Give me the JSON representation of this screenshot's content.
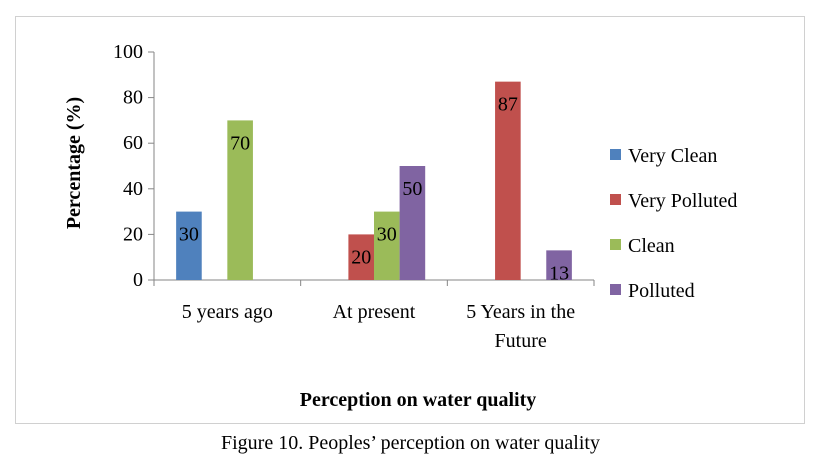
{
  "caption": "Figure 10. Peoples’ perception on water quality",
  "chart_data": {
    "type": "bar",
    "categories": [
      "5 years ago",
      "At present",
      "5 Years in the Future"
    ],
    "series": [
      {
        "name": "Very Clean",
        "color": "#4f81bd",
        "values": [
          30,
          null,
          null
        ]
      },
      {
        "name": "Very Polluted",
        "color": "#c0504d",
        "values": [
          null,
          20,
          87
        ]
      },
      {
        "name": "Clean",
        "color": "#9bbb59",
        "values": [
          70,
          30,
          null
        ]
      },
      {
        "name": "Polluted",
        "color": "#8064a2",
        "values": [
          null,
          50,
          13
        ]
      }
    ],
    "data_labels": [
      {
        "series": 0,
        "category": 0,
        "text": "30"
      },
      {
        "series": 2,
        "category": 0,
        "text": "70"
      },
      {
        "series": 1,
        "category": 1,
        "text": "20"
      },
      {
        "series": 2,
        "category": 1,
        "text": "30"
      },
      {
        "series": 3,
        "category": 1,
        "text": "50"
      },
      {
        "series": 1,
        "category": 2,
        "text": "87"
      },
      {
        "series": 3,
        "category": 2,
        "text": "13"
      }
    ],
    "yticks": [
      "0",
      "20",
      "40",
      "60",
      "80",
      "100"
    ],
    "ylim": [
      0,
      100
    ],
    "ylabel": "Percentage (%)",
    "xlabel": "Perception on water quality",
    "title": "",
    "legend_position": "right",
    "grid": false
  }
}
